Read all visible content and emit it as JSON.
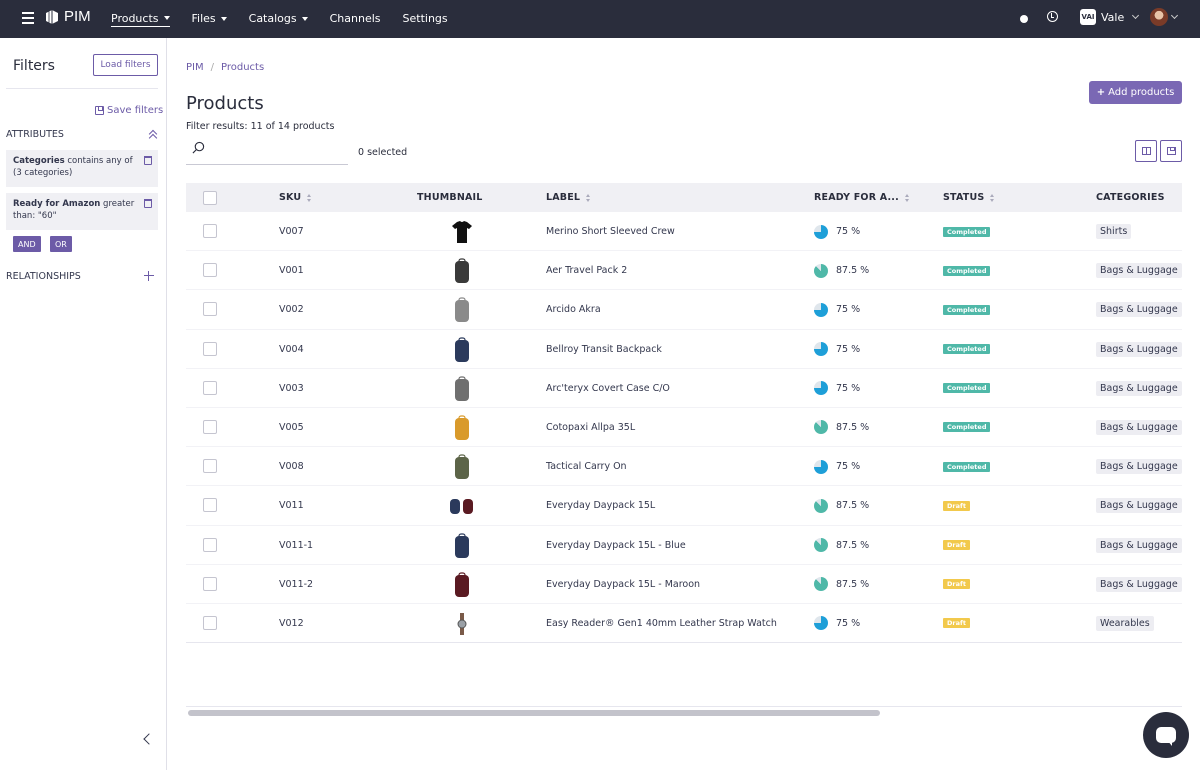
{
  "topnav": {
    "brand": "PIM",
    "items": [
      {
        "label": "Products",
        "dropdown": true,
        "active": true
      },
      {
        "label": "Files",
        "dropdown": true,
        "active": false
      },
      {
        "label": "Catalogs",
        "dropdown": true,
        "active": false
      },
      {
        "label": "Channels",
        "dropdown": false,
        "active": false
      },
      {
        "label": "Settings",
        "dropdown": false,
        "active": false
      }
    ],
    "org_logo_text": "VAI",
    "org_name": "Vale"
  },
  "filters": {
    "title": "Filters",
    "load_label": "Load filters",
    "save_label": "Save filters",
    "attributes_label": "ATTRIBUTES",
    "chips": [
      {
        "bold": "Categories",
        "text": " contains any of (3 categories)"
      },
      {
        "bold": "Ready for Amazon",
        "text": " greater than: \"60\""
      }
    ],
    "and_label": "AND",
    "or_label": "OR",
    "relationships_label": "RELATIONSHIPS"
  },
  "breadcrumb": [
    "PIM",
    "Products"
  ],
  "page": {
    "title": "Products",
    "add_label": "Add products",
    "filter_results": "Filter results: 11 of 14 products",
    "search_placeholder": "",
    "selected": "0 selected"
  },
  "table": {
    "columns": [
      "SKU",
      "THUMBNAIL",
      "LABEL",
      "READY FOR A...",
      "STATUS",
      "CATEGORIES"
    ],
    "rows": [
      {
        "sku": "V007",
        "label": "Merino Short Sleeved Crew",
        "ready": "75 %",
        "ready_value": 75,
        "status": "Completed",
        "category": "Shirts",
        "thumb_color": "#111111",
        "thumb_shape": "shirt"
      },
      {
        "sku": "V001",
        "label": "Aer Travel Pack 2",
        "ready": "87.5 %",
        "ready_value": 87.5,
        "status": "Completed",
        "category": "Bags & Luggage",
        "thumb_color": "#3a3a3a",
        "thumb_shape": "bag"
      },
      {
        "sku": "V002",
        "label": "Arcido Akra",
        "ready": "75 %",
        "ready_value": 75,
        "status": "Completed",
        "category": "Bags & Luggage",
        "thumb_color": "#8a8a8a",
        "thumb_shape": "bag"
      },
      {
        "sku": "V004",
        "label": "Bellroy Transit Backpack",
        "ready": "75 %",
        "ready_value": 75,
        "status": "Completed",
        "category": "Bags & Luggage",
        "thumb_color": "#2b3a5c",
        "thumb_shape": "bag"
      },
      {
        "sku": "V003",
        "label": "Arc'teryx Covert Case C/O",
        "ready": "75 %",
        "ready_value": 75,
        "status": "Completed",
        "category": "Bags & Luggage",
        "thumb_color": "#6f6f6f",
        "thumb_shape": "bag"
      },
      {
        "sku": "V005",
        "label": "Cotopaxi Allpa 35L",
        "ready": "87.5 %",
        "ready_value": 87.5,
        "status": "Completed",
        "category": "Bags & Luggage",
        "thumb_color": "#d99a2b",
        "thumb_shape": "bag"
      },
      {
        "sku": "V008",
        "label": "Tactical Carry On",
        "ready": "75 %",
        "ready_value": 75,
        "status": "Completed",
        "category": "Bags & Luggage",
        "thumb_color": "#5c6448",
        "thumb_shape": "bag"
      },
      {
        "sku": "V011",
        "label": "Everyday Daypack 15L",
        "ready": "87.5 %",
        "ready_value": 87.5,
        "status": "Draft",
        "category": "Bags & Luggage",
        "thumb_color": "#2b3a5c",
        "thumb_shape": "pair"
      },
      {
        "sku": "V011-1",
        "label": "Everyday Daypack 15L - Blue",
        "ready": "87.5 %",
        "ready_value": 87.5,
        "status": "Draft",
        "category": "Bags & Luggage",
        "thumb_color": "#2b3a5c",
        "thumb_shape": "bag"
      },
      {
        "sku": "V011-2",
        "label": "Everyday Daypack 15L - Maroon",
        "ready": "87.5 %",
        "ready_value": 87.5,
        "status": "Draft",
        "category": "Bags & Luggage",
        "thumb_color": "#5a1a22",
        "thumb_shape": "bag"
      },
      {
        "sku": "V012",
        "label": "Easy Reader® Gen1 40mm Leather Strap Watch",
        "ready": "75 %",
        "ready_value": 75,
        "status": "Draft",
        "category": "Wearables",
        "thumb_color": "#7a5a48",
        "thumb_shape": "watch"
      }
    ]
  },
  "colors": {
    "topbar": "#2a2d3c",
    "accent": "#6c5ba7",
    "completed": "#4fb8a8",
    "draft": "#f2c94c",
    "pie_75": "#1e9fd8",
    "pie_875": "#4fb8a8",
    "pie_track": "#dfe6ec"
  }
}
